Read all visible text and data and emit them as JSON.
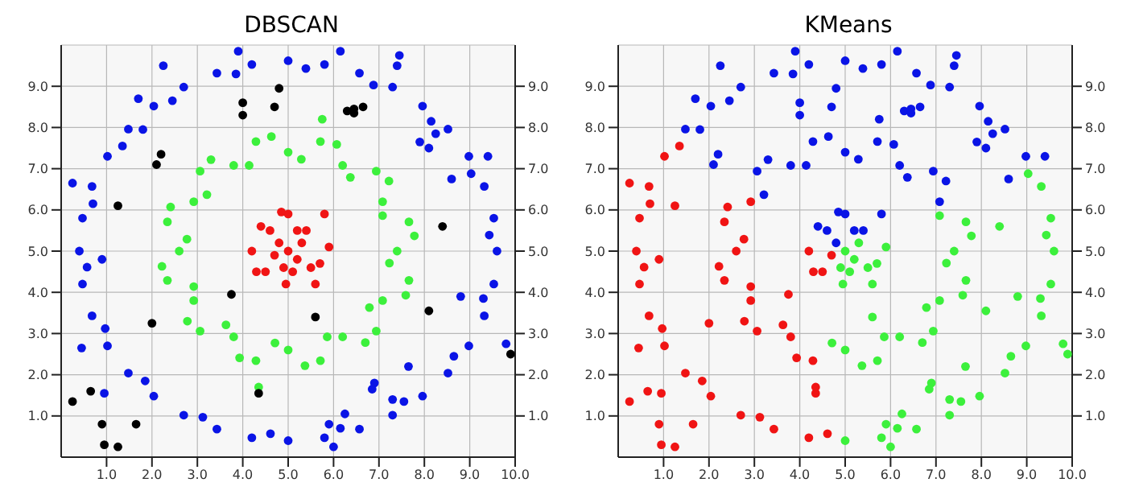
{
  "chart_data": [
    {
      "type": "scatter",
      "title": "DBSCAN",
      "marker": "circle",
      "grid": true,
      "xlim": [
        0,
        10
      ],
      "ylim": [
        0,
        10
      ],
      "y2lim": [
        0,
        10
      ],
      "xticks": [
        {
          "value": 1,
          "label": "1.0"
        },
        {
          "value": 2,
          "label": "2.0"
        },
        {
          "value": 3,
          "label": "3.0"
        },
        {
          "value": 4,
          "label": "4.0"
        },
        {
          "value": 5,
          "label": "5.0"
        },
        {
          "value": 6,
          "label": "6.0"
        },
        {
          "value": 7,
          "label": "7.0"
        },
        {
          "value": 8,
          "label": "8.0"
        },
        {
          "value": 9,
          "label": "9.0"
        },
        {
          "value": 10,
          "label": "10.0"
        }
      ],
      "yticks": [
        {
          "value": 1,
          "label": "1.0"
        },
        {
          "value": 2,
          "label": "2.0"
        },
        {
          "value": 3,
          "label": "3.0"
        },
        {
          "value": 4,
          "label": "4.0"
        },
        {
          "value": 5,
          "label": "5.0"
        },
        {
          "value": 6,
          "label": "6.0"
        },
        {
          "value": 7,
          "label": "7.0"
        },
        {
          "value": 8,
          "label": "8.0"
        },
        {
          "value": 9,
          "label": "9.0"
        }
      ],
      "y2ticks": [
        {
          "value": 1,
          "label": "1.0"
        },
        {
          "value": 2,
          "label": "2.0"
        },
        {
          "value": 3,
          "label": "3.0"
        },
        {
          "value": 4,
          "label": "4.0"
        },
        {
          "value": 5,
          "label": "5.0"
        },
        {
          "value": 6,
          "label": "6.0"
        },
        {
          "value": 7,
          "label": "7.0"
        },
        {
          "value": 8,
          "label": "8.0"
        },
        {
          "value": 9,
          "label": "9.0"
        }
      ],
      "series": [
        {
          "color": "#0a14e6",
          "x": [
            9.6,
            9.53,
            9.32,
            8.98,
            8.52,
            7.96,
            7.3,
            6.57,
            5.8,
            5.0,
            4.2,
            3.43,
            2.7,
            2.04,
            1.48,
            1.02,
            0.68,
            0.47,
            0.4,
            0.47,
            0.68,
            1.02,
            1.48,
            2.04,
            2.7,
            3.43,
            4.2,
            5.0,
            5.8,
            6.57,
            7.3,
            7.96,
            8.52,
            8.98,
            9.32,
            9.53,
            9.43,
            9.03,
            8.15,
            6.88,
            5.39,
            3.85,
            2.45,
            1.35,
            0.7,
            0.57,
            0.97,
            1.85,
            3.12,
            4.61,
            6.15,
            7.55,
            8.65,
            9.3,
            0.25,
            0.9,
            0.45,
            0.95,
            2.25,
            1.7,
            1.8,
            3.9,
            6.15,
            7.45,
            7.4,
            7.9,
            8.1,
            8.25,
            8.6,
            9.4,
            8.8,
            9.8,
            7.65,
            6.9,
            6.85,
            7.3,
            6.25,
            5.9,
            6.0
          ],
          "values": [
            5.0,
            5.8,
            6.57,
            7.3,
            7.96,
            8.52,
            8.98,
            9.32,
            9.53,
            9.62,
            9.53,
            9.32,
            8.98,
            8.52,
            7.96,
            7.3,
            6.57,
            5.8,
            5.0,
            4.2,
            3.43,
            2.7,
            2.04,
            1.48,
            1.02,
            0.68,
            0.47,
            0.4,
            0.47,
            0.68,
            1.02,
            1.48,
            2.04,
            2.7,
            3.43,
            4.2,
            5.39,
            6.88,
            8.15,
            9.03,
            9.43,
            9.3,
            8.65,
            7.55,
            6.15,
            4.61,
            3.12,
            1.85,
            0.97,
            0.57,
            0.7,
            1.35,
            2.45,
            3.85,
            6.65,
            4.8,
            2.65,
            1.55,
            9.5,
            8.7,
            7.95,
            9.85,
            9.85,
            9.75,
            9.5,
            7.65,
            7.5,
            7.85,
            6.75,
            7.3,
            3.9,
            2.75,
            2.2,
            1.8,
            1.65,
            1.4,
            1.05,
            0.8,
            0.25
          ]
        },
        {
          "color": "#3cf03c",
          "x": [
            7.4,
            7.66,
            7.08,
            6.94,
            6.2,
            5.71,
            5.0,
            4.29,
            3.8,
            3.06,
            2.92,
            2.34,
            2.6,
            2.34,
            2.92,
            3.06,
            3.8,
            4.29,
            5.0,
            5.71,
            6.2,
            6.94,
            7.08,
            7.66,
            7.78,
            7.08,
            7.22,
            6.37,
            6.07,
            5.29,
            4.63,
            4.14,
            3.3,
            3.21,
            2.41,
            2.77,
            2.22,
            2.92,
            2.78,
            3.63,
            3.93,
            4.71,
            5.37,
            5.86,
            6.7,
            6.79,
            7.59,
            7.23,
            5.75,
            4.35
          ],
          "values": [
            5.0,
            5.71,
            6.2,
            6.94,
            7.08,
            7.66,
            7.4,
            7.66,
            7.08,
            6.94,
            6.2,
            5.71,
            5.0,
            4.29,
            3.8,
            3.06,
            2.92,
            2.34,
            2.6,
            2.34,
            2.92,
            3.06,
            3.8,
            4.29,
            5.37,
            5.86,
            6.7,
            6.79,
            7.59,
            7.23,
            7.78,
            7.08,
            7.22,
            6.37,
            6.07,
            5.29,
            4.63,
            4.14,
            3.3,
            3.21,
            2.41,
            2.77,
            2.22,
            2.92,
            2.78,
            3.63,
            3.93,
            4.71,
            8.2,
            1.7
          ]
        },
        {
          "color": "#f01414",
          "x": [
            5.0,
            4.8,
            5.2,
            4.6,
            5.4,
            4.2,
            5.9,
            4.5,
            5.5,
            5.0,
            4.85,
            5.8,
            4.3,
            5.6,
            4.95,
            5.3,
            4.7,
            5.1,
            4.4,
            5.7,
            5.2,
            4.9
          ],
          "values": [
            5.0,
            5.2,
            4.8,
            5.5,
            5.5,
            5.0,
            5.1,
            4.5,
            4.6,
            5.9,
            5.95,
            5.9,
            4.5,
            4.2,
            4.2,
            5.2,
            4.9,
            4.5,
            5.6,
            4.7,
            5.5,
            4.6
          ]
        },
        {
          "color": "#000000",
          "x": [
            0.25,
            0.65,
            0.9,
            0.95,
            1.25,
            1.65,
            2.0,
            2.1,
            2.2,
            1.25,
            3.75,
            4.0,
            4.0,
            4.7,
            4.8,
            6.3,
            6.45,
            6.45,
            6.65,
            5.6,
            4.35,
            8.1,
            8.4,
            9.9
          ],
          "values": [
            1.35,
            1.6,
            0.8,
            0.3,
            0.25,
            0.8,
            3.25,
            7.1,
            7.35,
            6.1,
            3.95,
            8.6,
            8.3,
            8.5,
            8.95,
            8.4,
            8.35,
            8.45,
            8.5,
            3.4,
            1.55,
            3.55,
            5.6,
            2.5
          ]
        }
      ]
    },
    {
      "type": "scatter",
      "title": "KMeans",
      "marker": "circle",
      "grid": true,
      "xlim": [
        0,
        10
      ],
      "ylim": [
        0,
        10
      ],
      "y2lim": [
        0,
        10
      ],
      "xticks": [
        {
          "value": 1,
          "label": "1.0"
        },
        {
          "value": 2,
          "label": "2.0"
        },
        {
          "value": 3,
          "label": "3.0"
        },
        {
          "value": 4,
          "label": "4.0"
        },
        {
          "value": 5,
          "label": "5.0"
        },
        {
          "value": 6,
          "label": "6.0"
        },
        {
          "value": 7,
          "label": "7.0"
        },
        {
          "value": 8,
          "label": "8.0"
        },
        {
          "value": 9,
          "label": "9.0"
        },
        {
          "value": 10,
          "label": "10.0"
        }
      ],
      "yticks": [
        {
          "value": 1,
          "label": "1.0"
        },
        {
          "value": 2,
          "label": "2.0"
        },
        {
          "value": 3,
          "label": "3.0"
        },
        {
          "value": 4,
          "label": "4.0"
        },
        {
          "value": 5,
          "label": "5.0"
        },
        {
          "value": 6,
          "label": "6.0"
        },
        {
          "value": 7,
          "label": "7.0"
        },
        {
          "value": 8,
          "label": "8.0"
        },
        {
          "value": 9,
          "label": "9.0"
        }
      ],
      "y2ticks": [
        {
          "value": 1,
          "label": "1.0"
        },
        {
          "value": 2,
          "label": "2.0"
        },
        {
          "value": 3,
          "label": "3.0"
        },
        {
          "value": 4,
          "label": "4.0"
        },
        {
          "value": 5,
          "label": "5.0"
        },
        {
          "value": 6,
          "label": "6.0"
        },
        {
          "value": 7,
          "label": "7.0"
        },
        {
          "value": 8,
          "label": "8.0"
        },
        {
          "value": 9,
          "label": "9.0"
        }
      ],
      "series": [
        {
          "color": "#f01414",
          "x": [
            1.02,
            0.68,
            0.47,
            0.4,
            0.47,
            0.68,
            1.02,
            1.48,
            2.04,
            2.7,
            3.43,
            4.2,
            1.35,
            0.7,
            0.57,
            0.97,
            1.85,
            3.12,
            4.61,
            0.25,
            0.9,
            0.45,
            0.95,
            0.25,
            0.65,
            0.9,
            0.95,
            1.25,
            1.65,
            2.0,
            1.25,
            3.75,
            4.35,
            2.92,
            2.34,
            2.6,
            2.34,
            2.92,
            3.06,
            3.8,
            4.29,
            2.41,
            2.77,
            2.22,
            2.92,
            2.78,
            3.63,
            3.93,
            4.35,
            4.2,
            4.5,
            4.3,
            4.7
          ],
          "values": [
            7.3,
            6.57,
            5.8,
            5.0,
            4.2,
            3.43,
            2.7,
            2.04,
            1.48,
            1.02,
            0.68,
            0.47,
            7.55,
            6.15,
            4.61,
            3.12,
            1.85,
            0.97,
            0.57,
            6.65,
            4.8,
            2.65,
            1.55,
            1.35,
            1.6,
            0.8,
            0.3,
            0.25,
            0.8,
            3.25,
            6.1,
            3.95,
            1.55,
            6.2,
            5.71,
            5.0,
            4.29,
            3.8,
            3.06,
            2.92,
            2.34,
            6.07,
            5.29,
            4.63,
            4.14,
            3.3,
            3.21,
            2.41,
            1.7,
            5.0,
            4.5,
            4.5,
            4.9
          ]
        },
        {
          "color": "#0a14e6",
          "x": [
            8.98,
            8.52,
            7.96,
            7.3,
            6.57,
            5.8,
            5.0,
            4.2,
            3.43,
            2.7,
            2.04,
            1.48,
            8.15,
            6.88,
            5.39,
            3.85,
            2.45,
            2.25,
            1.7,
            1.8,
            3.9,
            6.15,
            7.45,
            7.4,
            7.9,
            8.1,
            8.25,
            8.6,
            9.4,
            2.1,
            2.2,
            4.0,
            4.0,
            4.7,
            4.8,
            6.3,
            6.45,
            6.45,
            6.65,
            7.08,
            6.94,
            6.2,
            5.71,
            5.0,
            4.29,
            3.8,
            3.06,
            7.22,
            6.37,
            6.07,
            5.29,
            4.63,
            4.14,
            3.3,
            3.21,
            5.75,
            4.8,
            4.6,
            5.4,
            5.0,
            4.85,
            5.8,
            4.4,
            5.2
          ],
          "values": [
            7.3,
            7.96,
            8.52,
            8.98,
            9.32,
            9.53,
            9.62,
            9.53,
            9.32,
            8.98,
            8.52,
            7.96,
            8.15,
            9.03,
            9.43,
            9.3,
            8.65,
            9.5,
            8.7,
            7.95,
            9.85,
            9.85,
            9.75,
            9.5,
            7.65,
            7.5,
            7.85,
            6.75,
            7.3,
            7.1,
            7.35,
            8.6,
            8.3,
            8.5,
            8.95,
            8.4,
            8.35,
            8.45,
            8.5,
            6.2,
            6.94,
            7.08,
            7.66,
            7.4,
            7.66,
            7.08,
            6.94,
            6.7,
            6.79,
            7.59,
            7.23,
            7.78,
            7.08,
            7.22,
            6.37,
            8.2,
            5.2,
            5.5,
            5.5,
            5.9,
            5.95,
            5.9,
            5.6,
            5.5
          ]
        },
        {
          "color": "#3cf03c",
          "x": [
            5.0,
            5.8,
            6.57,
            7.3,
            7.96,
            8.52,
            8.98,
            9.32,
            9.53,
            9.6,
            9.53,
            9.32,
            9.43,
            9.03,
            6.15,
            7.55,
            8.65,
            9.3,
            8.8,
            9.8,
            7.65,
            6.9,
            6.85,
            7.3,
            6.25,
            5.9,
            6.0,
            5.6,
            8.1,
            8.4,
            9.9,
            7.4,
            7.66,
            5.0,
            5.71,
            6.2,
            6.94,
            7.08,
            7.66,
            7.78,
            7.08,
            4.71,
            5.37,
            5.86,
            6.7,
            6.79,
            7.59,
            7.23,
            5.0,
            5.2,
            5.9,
            5.5,
            5.6,
            4.95,
            5.3,
            5.1,
            5.7,
            4.9
          ],
          "values": [
            0.4,
            0.47,
            0.68,
            1.02,
            1.48,
            2.04,
            2.7,
            3.43,
            4.2,
            5.0,
            5.8,
            6.57,
            5.39,
            6.88,
            0.7,
            1.35,
            2.45,
            3.85,
            3.9,
            2.75,
            2.2,
            1.8,
            1.65,
            1.4,
            1.05,
            0.8,
            0.25,
            3.4,
            3.55,
            5.6,
            2.5,
            5.0,
            5.71,
            2.6,
            2.34,
            2.92,
            3.06,
            3.8,
            4.29,
            5.37,
            5.86,
            2.77,
            2.22,
            2.92,
            2.78,
            3.63,
            3.93,
            4.71,
            5.0,
            4.8,
            5.1,
            4.6,
            4.2,
            4.2,
            5.2,
            4.5,
            4.7,
            4.6
          ]
        }
      ]
    }
  ]
}
